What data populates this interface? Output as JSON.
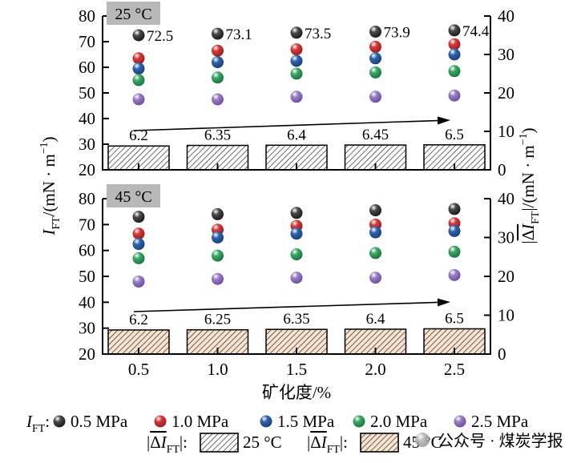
{
  "watermark": {
    "text": "公众号 · 煤炭学报",
    "color": "#c7c7c7",
    "ball_color": "#b5b5b5",
    "ball_dark": "#8e8e8e"
  },
  "chart_data": {
    "type": "scatter+bar",
    "x_label": "矿化度/%",
    "x": [
      0.5,
      1.0,
      1.5,
      2.0,
      2.5
    ],
    "x_tick_labels": [
      "0.5",
      "1.0",
      "1.5",
      "2.0",
      "2.5"
    ],
    "left_axis": {
      "range": [
        20,
        80
      ],
      "ticks": [
        80,
        70,
        60,
        50,
        40,
        30,
        20
      ],
      "tick_labels": [
        "80",
        "70",
        "60",
        "50",
        "40",
        "30",
        "20"
      ],
      "label_parts": [
        {
          "t": "I",
          "i": 1
        },
        {
          "t": "FT",
          "sub": 1
        },
        {
          "t": "/(mN · m"
        },
        {
          "t": "−1",
          "sup": 1
        },
        {
          "t": ")"
        }
      ]
    },
    "right_axis": {
      "range": [
        0,
        40
      ],
      "ticks": [
        40,
        30,
        20,
        10,
        0
      ],
      "tick_labels": [
        "40",
        "30",
        "20",
        "10",
        "0"
      ],
      "label_parts": [
        {
          "t": "|"
        },
        {
          "t": "Δ",
          "ov": 1
        },
        {
          "t": "I",
          "i": 1,
          "ov": 1
        },
        {
          "t": "FT",
          "sub": 1
        },
        {
          "t": "|/(mN · m"
        },
        {
          "t": "−1",
          "sup": 1
        },
        {
          "t": ")"
        }
      ]
    },
    "series_colors": [
      {
        "name": "0.5 MPa",
        "color": "#4a4a4a",
        "dark": "#0f0f0f"
      },
      {
        "name": "1.0 MPa",
        "color": "#d23b3c",
        "dark": "#8d1717"
      },
      {
        "name": "1.5 MPa",
        "color": "#2e63ac",
        "dark": "#16386b"
      },
      {
        "name": "2.0 MPa",
        "color": "#3ca766",
        "dark": "#17663a"
      },
      {
        "name": "2.5 MPa",
        "color": "#987ec3",
        "dark": "#5f4397"
      }
    ],
    "panels": [
      {
        "tag": "25 °C",
        "tag_bg": "#b8b8b8",
        "trend_arrow": true,
        "series": [
          {
            "name": "0.5 MPa",
            "values": [
              72.5,
              73.1,
              73.5,
              73.9,
              74.4
            ],
            "point_labels": [
              "72.5",
              "73.1",
              "73.5",
              "73.9",
              "74.4"
            ]
          },
          {
            "name": "1.0 MPa",
            "values": [
              63.5,
              66.5,
              67.0,
              68.0,
              69.0
            ]
          },
          {
            "name": "1.5 MPa",
            "values": [
              59.5,
              62.0,
              62.5,
              63.5,
              65.0
            ]
          },
          {
            "name": "2.0 MPa",
            "values": [
              55.0,
              56.0,
              57.5,
              58.0,
              58.5
            ]
          },
          {
            "name": "2.5 MPa",
            "values": [
              47.5,
              47.5,
              48.5,
              48.5,
              49.0
            ]
          }
        ],
        "bars": {
          "values": [
            6.2,
            6.35,
            6.4,
            6.45,
            6.5
          ],
          "labels": [
            "6.2",
            "6.35",
            "6.4",
            "6.45",
            "6.5"
          ],
          "fill": "#ffffff",
          "hatch": "#1a1a1a",
          "label": "25 °C"
        }
      },
      {
        "tag": "45 °C",
        "tag_bg": "#b8b8b8",
        "trend_arrow": true,
        "series": [
          {
            "name": "0.5 MPa",
            "values": [
              73.0,
              74.0,
              74.5,
              75.5,
              76.0
            ]
          },
          {
            "name": "1.0 MPa",
            "values": [
              66.5,
              68.0,
              69.5,
              70.0,
              70.5
            ]
          },
          {
            "name": "1.5 MPa",
            "values": [
              62.5,
              65.0,
              66.5,
              67.0,
              67.5
            ]
          },
          {
            "name": "2.0 MPa",
            "values": [
              57.0,
              58.0,
              58.5,
              59.0,
              59.5
            ]
          },
          {
            "name": "2.5 MPa",
            "values": [
              48.0,
              49.0,
              49.5,
              49.5,
              50.5
            ]
          }
        ],
        "bars": {
          "values": [
            6.2,
            6.25,
            6.35,
            6.4,
            6.5
          ],
          "labels": [
            "6.2",
            "6.25",
            "6.35",
            "6.4",
            "6.5"
          ],
          "fill": "#f8e3cf",
          "hatch": "#1a1a1a",
          "label": "45 °C"
        }
      }
    ],
    "legend": {
      "scatter_prefix_parts": [
        {
          "t": "I",
          "i": 1
        },
        {
          "t": "FT",
          "sub": 1
        },
        {
          "t": ":"
        }
      ],
      "items": [
        {
          "label": "0.5 MPa"
        },
        {
          "label": "1.0 MPa"
        },
        {
          "label": "1.5 MPa"
        },
        {
          "label": "2.0 MPa"
        },
        {
          "label": "2.5 MPa"
        }
      ],
      "bar_groups": [
        {
          "prefix_parts": [
            {
              "t": "|"
            },
            {
              "t": "Δ",
              "ov": 1
            },
            {
              "t": "I",
              "i": 1,
              "ov": 1
            },
            {
              "t": "FT",
              "sub": 1
            },
            {
              "t": "|:"
            }
          ],
          "label": "25 °C",
          "fill": "#ffffff"
        },
        {
          "prefix_parts": [
            {
              "t": "|"
            },
            {
              "t": "Δ",
              "ov": 1
            },
            {
              "t": "I",
              "i": 1,
              "ov": 1
            },
            {
              "t": "FT",
              "sub": 1
            },
            {
              "t": "|:"
            }
          ],
          "label": "45 °C",
          "fill": "#f8e3cf"
        }
      ]
    }
  }
}
